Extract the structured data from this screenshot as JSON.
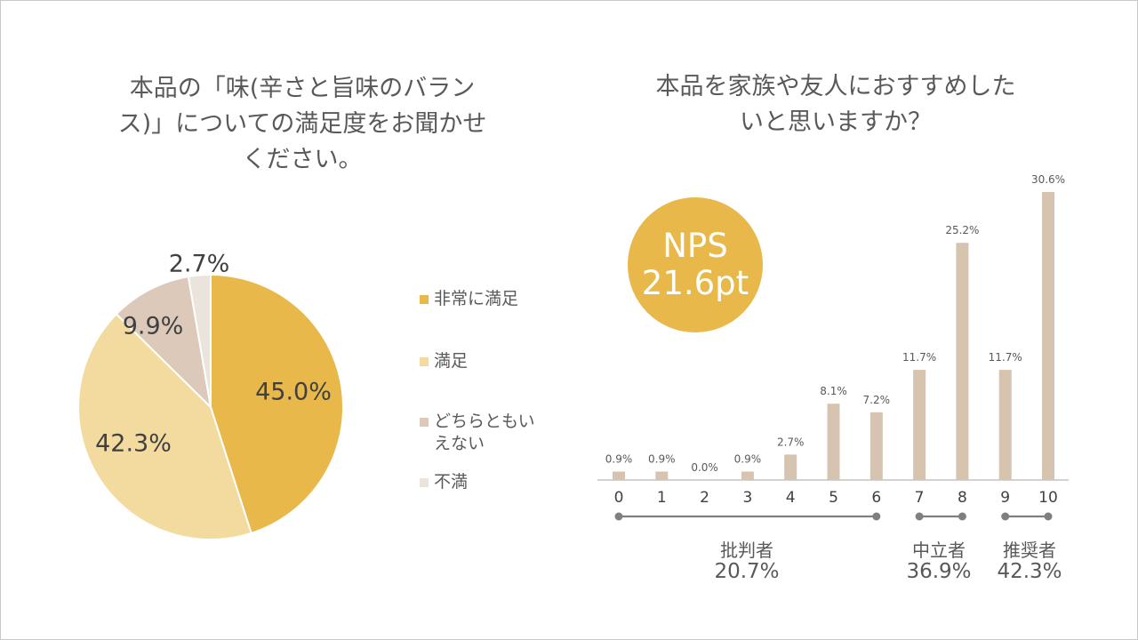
{
  "pie_title": "本品の「味(辛さと旨味のバランス)」についての満足度をお聞かせください。",
  "bar_title": "本品を家族や友人におすすめしたいと思いますか？",
  "nps": {
    "label": "NPS",
    "value": "21.6pt"
  },
  "colors": {
    "very_satisfied": "#e8b84a",
    "satisfied": "#f3dba0",
    "neutral": "#dcc9b9",
    "dissatisfied": "#ebe4dd",
    "bar": "#d6c3b0",
    "axis": "#a6a6a6",
    "group_line": "#7f7f7f",
    "nps_badge": "#e8b84a"
  },
  "groups": [
    {
      "name": "批判者",
      "value": "20.7%"
    },
    {
      "name": "中立者",
      "value": "36.9%"
    },
    {
      "name": "推奨者",
      "value": "42.3%"
    }
  ],
  "chart_data": [
    {
      "type": "pie",
      "title": "本品の「味(辛さと旨味のバランス)」についての満足度をお聞かせください。",
      "legend_position": "right",
      "slices": [
        {
          "label": "非常に満足",
          "value": 45.0,
          "display": "45.0%"
        },
        {
          "label": "満足",
          "value": 42.3,
          "display": "42.3%"
        },
        {
          "label": "どちらともいえない",
          "value": 9.9,
          "display": "9.9%"
        },
        {
          "label": "不満",
          "value": 2.7,
          "display": "2.7%"
        }
      ]
    },
    {
      "type": "bar",
      "title": "本品を家族や友人におすすめしたいと思いますか？",
      "categories": [
        "0",
        "1",
        "2",
        "3",
        "4",
        "5",
        "6",
        "7",
        "8",
        "9",
        "10"
      ],
      "values": [
        0.9,
        0.9,
        0.0,
        0.9,
        2.7,
        8.1,
        7.2,
        11.7,
        25.2,
        11.7,
        30.6
      ],
      "labels": [
        "0.9%",
        "0.9%",
        "0.0%",
        "0.9%",
        "2.7%",
        "8.1%",
        "7.2%",
        "11.7%",
        "25.2%",
        "11.7%",
        "30.6%"
      ],
      "ylim": [
        0,
        30.6
      ]
    }
  ]
}
